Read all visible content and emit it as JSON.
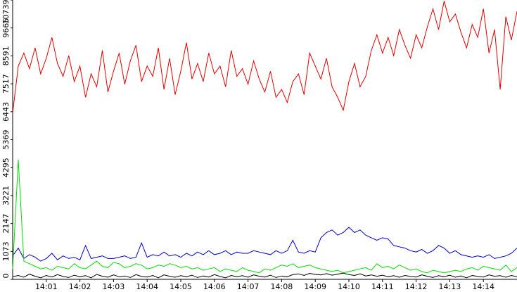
{
  "chart_data": {
    "type": "line",
    "x": [
      0,
      10,
      20,
      30,
      40,
      50,
      60,
      70,
      80,
      90,
      100,
      110,
      120,
      130,
      140,
      150,
      160,
      170,
      180,
      190,
      200,
      210,
      220,
      230,
      240,
      250,
      260,
      270,
      280,
      290,
      300,
      310,
      320,
      330,
      340,
      350,
      360,
      370,
      380,
      390,
      400,
      410,
      420,
      430,
      440,
      450,
      460,
      470,
      480,
      490,
      500,
      510,
      520,
      530,
      540,
      550,
      560,
      570,
      580,
      590,
      600,
      610,
      620,
      630,
      640,
      650,
      660,
      670,
      680,
      690,
      700,
      710,
      720,
      730,
      740,
      750,
      760,
      770,
      780,
      790,
      800,
      810,
      820,
      830,
      840,
      850,
      860,
      870,
      880,
      890,
      900
    ],
    "xlim": [
      0,
      900
    ],
    "xticks": [
      {
        "value": 60,
        "label": "14:01"
      },
      {
        "value": 120,
        "label": "14:02"
      },
      {
        "value": 180,
        "label": "14:03"
      },
      {
        "value": 240,
        "label": "14:04"
      },
      {
        "value": 300,
        "label": "14:05"
      },
      {
        "value": 360,
        "label": "14:06"
      },
      {
        "value": 420,
        "label": "14:07"
      },
      {
        "value": 480,
        "label": "14:08"
      },
      {
        "value": 540,
        "label": "14:09"
      },
      {
        "value": 600,
        "label": "14:10"
      },
      {
        "value": 660,
        "label": "14:11"
      },
      {
        "value": 720,
        "label": "14:12"
      },
      {
        "value": 780,
        "label": "14:13"
      },
      {
        "value": 840,
        "label": "14:14"
      }
    ],
    "ylim": [
      0,
      10739
    ],
    "yticks": [
      0,
      1073,
      2147,
      3221,
      4295,
      5369,
      6443,
      7517,
      8591,
      9665,
      10739
    ],
    "grid": false,
    "series": [
      {
        "color": "#e00000",
        "values": [
          6400,
          8200,
          8700,
          8100,
          8900,
          7900,
          8500,
          9300,
          8300,
          7800,
          8600,
          7600,
          8200,
          7000,
          7900,
          7400,
          8800,
          7200,
          8000,
          8700,
          7500,
          8400,
          9000,
          7600,
          8200,
          7800,
          8900,
          7300,
          8500,
          7100,
          8000,
          9100,
          7700,
          8300,
          7600,
          8700,
          7900,
          8200,
          7400,
          8800,
          7800,
          8100,
          7500,
          8400,
          7700,
          7200,
          8000,
          7000,
          7300,
          6800,
          7600,
          7900,
          7100,
          8700,
          8200,
          7700,
          8500,
          7400,
          7000,
          6500,
          7600,
          8300,
          7400,
          7800,
          8800,
          9400,
          8700,
          9300,
          8600,
          9600,
          9000,
          8500,
          9400,
          8900,
          9700,
          10400,
          9600,
          10700,
          9900,
          10200,
          9500,
          8900,
          9800,
          9300,
          10400,
          8700,
          9600,
          7300,
          10100,
          9200,
          10300
        ]
      },
      {
        "color": "#0000c0",
        "values": [
          900,
          1200,
          800,
          950,
          850,
          700,
          800,
          1000,
          750,
          900,
          800,
          850,
          750,
          1300,
          800,
          850,
          900,
          800,
          800,
          850,
          900,
          800,
          850,
          1400,
          850,
          950,
          900,
          1050,
          900,
          950,
          850,
          1000,
          900,
          1050,
          950,
          1100,
          950,
          1000,
          1100,
          950,
          1050,
          1000,
          1000,
          1100,
          1050,
          1000,
          950,
          1100,
          1000,
          1100,
          1500,
          1050,
          1000,
          1100,
          1050,
          1600,
          1800,
          1900,
          1700,
          1800,
          2000,
          1800,
          1900,
          1700,
          1600,
          1500,
          1600,
          1550,
          1300,
          1250,
          1200,
          1100,
          1050,
          1150,
          1000,
          1100,
          1300,
          1200,
          1000,
          1100,
          950,
          900,
          850,
          900,
          850,
          950,
          800,
          850,
          900,
          1000,
          1200
        ]
      },
      {
        "color": "#00e000",
        "values": [
          400,
          4600,
          700,
          600,
          500,
          400,
          450,
          350,
          500,
          450,
          400,
          600,
          450,
          400,
          550,
          700,
          500,
          450,
          650,
          600,
          450,
          500,
          600,
          550,
          400,
          450,
          550,
          500,
          600,
          550,
          450,
          500,
          400,
          450,
          350,
          400,
          450,
          300,
          400,
          350,
          300,
          450,
          350,
          300,
          250,
          400,
          350,
          450,
          550,
          500,
          600,
          450,
          500,
          550,
          450,
          400,
          350,
          300,
          350,
          250,
          300,
          350,
          400,
          450,
          350,
          600,
          450,
          500,
          400,
          550,
          450,
          350,
          400,
          300,
          250,
          350,
          300,
          250,
          300,
          350,
          300,
          400,
          450,
          350,
          500,
          450,
          400,
          350,
          550,
          300,
          450
        ]
      },
      {
        "color": "#000000",
        "values": [
          100,
          150,
          80,
          200,
          120,
          60,
          150,
          90,
          180,
          110,
          70,
          160,
          100,
          140,
          60,
          190,
          120,
          80,
          170,
          100,
          130,
          70,
          180,
          110,
          90,
          150,
          60,
          170,
          120,
          80,
          140,
          100,
          160,
          70,
          130,
          90,
          180,
          110,
          60,
          150,
          100,
          140,
          80,
          170,
          120,
          90,
          160,
          70,
          130,
          100,
          180,
          210,
          150,
          230,
          190,
          170,
          220,
          160,
          200,
          240,
          180,
          150,
          210,
          130,
          170,
          120,
          160,
          100,
          140,
          80,
          150,
          110,
          90,
          170,
          120,
          70,
          140,
          100,
          160,
          80,
          130,
          60,
          150,
          110,
          90,
          170,
          120,
          140,
          80,
          150,
          100
        ]
      }
    ]
  }
}
